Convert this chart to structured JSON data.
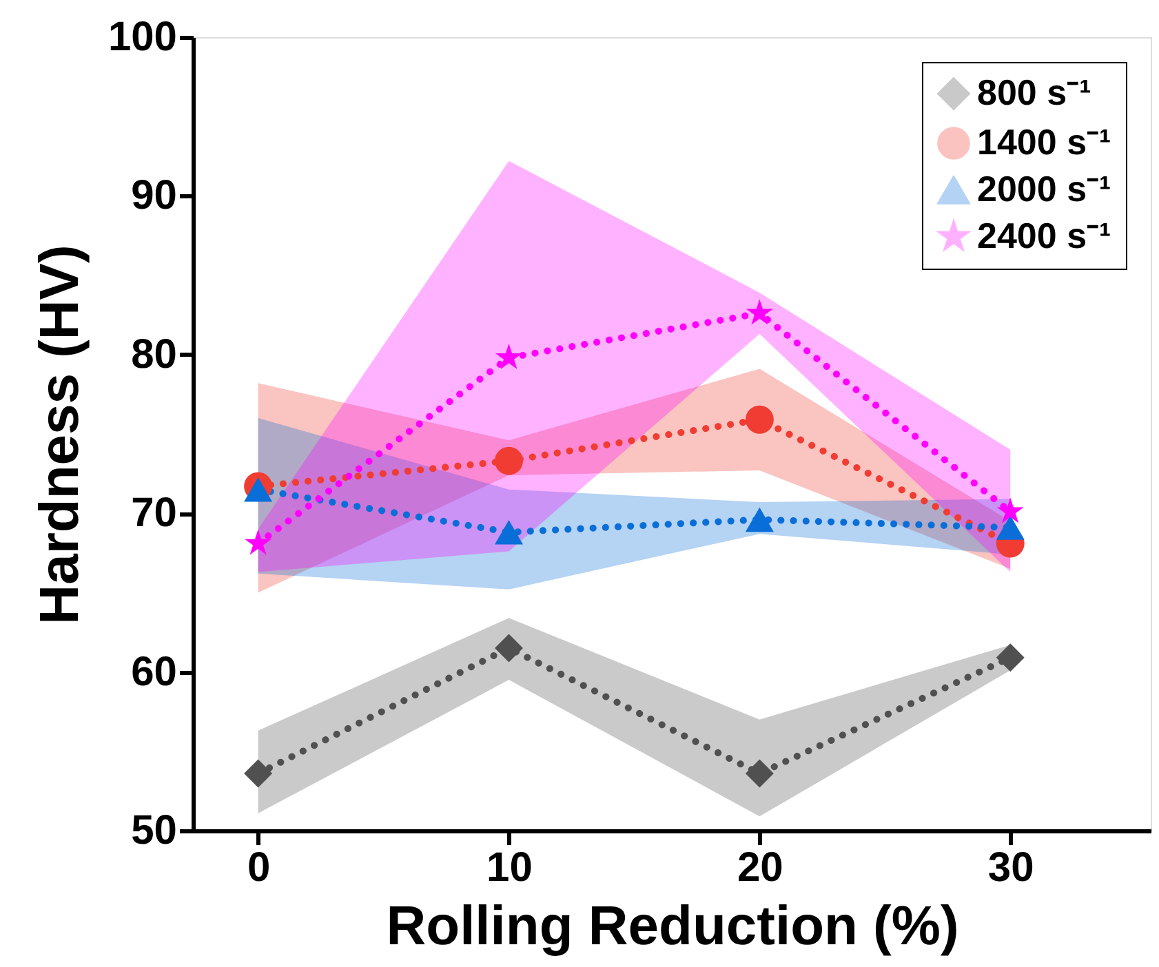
{
  "chart_data": {
    "type": "line",
    "xlabel": "Rolling Reduction (%)",
    "ylabel": "Hardness (HV)",
    "x": [
      0,
      10,
      20,
      30
    ],
    "xlim": [
      -2.6,
      35.6
    ],
    "xticks": [
      0,
      10,
      20,
      30
    ],
    "ylim": [
      50,
      100
    ],
    "yticks": [
      50,
      60,
      70,
      80,
      90,
      100
    ],
    "grid": false,
    "legend": "top right",
    "line_style": "dotted",
    "series": [
      {
        "name": "800 s⁻¹",
        "color": "#505050",
        "marker": "diamond",
        "values": [
          53.6,
          61.5,
          53.6,
          60.9
        ],
        "lower": [
          51.1,
          59.5,
          50.9,
          60.1
        ],
        "upper": [
          56.3,
          63.4,
          57.0,
          61.7
        ]
      },
      {
        "name": "1400 s⁻¹",
        "color": "#f03c32",
        "marker": "circle",
        "values": [
          71.7,
          73.3,
          75.9,
          68.1
        ],
        "lower": [
          65.0,
          72.4,
          72.7,
          66.5
        ],
        "upper": [
          78.2,
          74.6,
          79.1,
          69.5
        ]
      },
      {
        "name": "2000 s⁻¹",
        "color": "#0a6ed8",
        "marker": "triangle",
        "values": [
          71.5,
          68.8,
          69.6,
          69.1
        ],
        "lower": [
          66.2,
          65.2,
          68.7,
          67.4
        ],
        "upper": [
          76.0,
          71.5,
          70.7,
          70.9
        ]
      },
      {
        "name": "2400 s⁻¹",
        "color": "#ff00ff",
        "marker": "star",
        "values": [
          68.1,
          79.8,
          82.6,
          70.1
        ],
        "lower": [
          66.3,
          67.6,
          81.3,
          66.3
        ],
        "upper": [
          69.0,
          92.2,
          83.9,
          74.0
        ]
      }
    ]
  }
}
